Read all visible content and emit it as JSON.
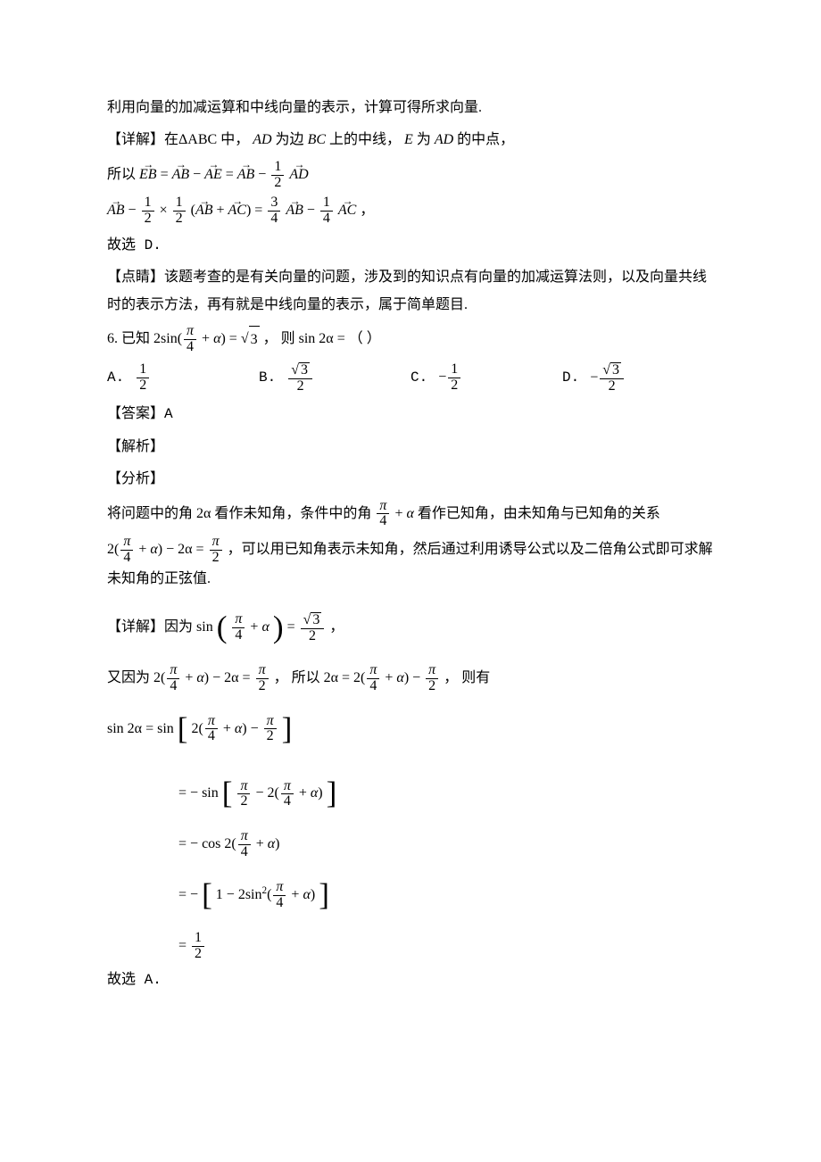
{
  "p1": "利用向量的加减运算和中线向量的表示，计算可得所求向量.",
  "p2a": "【详解】在",
  "p2b": "中，",
  "p2c": "为边",
  "p2d": "上的中线，",
  "p2e": "为",
  "p2f": "的中点，",
  "tri": "ΔABC",
  "AD": "AD",
  "BC": "BC",
  "E": "E",
  "p3a": "所以",
  "EB": "EB",
  "AB": "AB",
  "AE": "AE",
  "AC": "AC",
  "eq": "=",
  "minus": "−",
  "plus": "+",
  "times": "×",
  "half_n": "1",
  "half_d": "2",
  "threequarter_n": "3",
  "quarter_n": "1",
  "quarter_d": "4",
  "comma_cn": "，",
  "p4": "故选 D.",
  "p5": "【点睛】该题考查的是有关向量的问题，涉及到的知识点有向量的加减运算法则，以及向量共线时的表示方法，再有就是中线向量的表示，属于简单题目.",
  "q6a": "6. 已知",
  "two": "2",
  "sin": "sin",
  "cos": "cos",
  "lpar": "(",
  "rpar": ")",
  "pi": "π",
  "four": "4",
  "alpha": "α",
  "sqrt3": "3",
  "q6b": "，  则",
  "sin2a": "sin 2α",
  "q6c": " = （    ）",
  "optA": "A.",
  "optB": "B.",
  "optC": "C.",
  "optD": "D.",
  "ans_label": "【答案】A",
  "jiexi": "【解析】",
  "fenxi": "【分析】",
  "p6a": "将问题中的角",
  "twoalpha": "2α",
  "p6b": "看作未知角，条件中的角",
  "p6c": "看作已知角，由未知角与已知角的关系",
  "p6d": "，可以用已知角表示未知角，然后通过利用诱导公式以及二倍角公式即可求解未知角的正弦值.",
  "p7a": "【详解】因为",
  "p8a": "又因为",
  "p8b": "，  所以",
  "p8c": "，  则有",
  "one": "1",
  "p_final": "故选 A."
}
